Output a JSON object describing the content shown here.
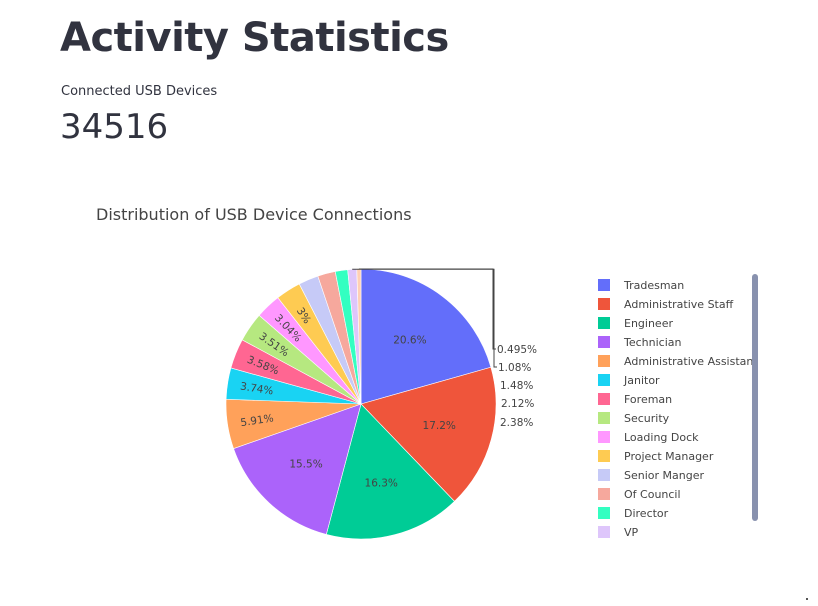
{
  "page": {
    "title": "Activity Statistics"
  },
  "metric": {
    "label": "Connected USB Devices",
    "value": "34516"
  },
  "chart_data": {
    "type": "pie",
    "title": "Distribution of USB Device Connections",
    "legend_position": "right",
    "direction": "clockwise",
    "start": "top",
    "slices": [
      {
        "name": "Tradesman",
        "percent": 20.6,
        "label": "20.6%",
        "color": "#636efa"
      },
      {
        "name": "Administrative Staff",
        "percent": 17.2,
        "label": "17.2%",
        "color": "#ef553b"
      },
      {
        "name": "Engineer",
        "percent": 16.3,
        "label": "16.3%",
        "color": "#00cc96"
      },
      {
        "name": "Technician",
        "percent": 15.5,
        "label": "15.5%",
        "color": "#ab63fa"
      },
      {
        "name": "Administrative Assistant",
        "percent": 5.91,
        "label": "5.91%",
        "color": "#ffa15a"
      },
      {
        "name": "Janitor",
        "percent": 3.74,
        "label": "3.74%",
        "color": "#19d3f3"
      },
      {
        "name": "Foreman",
        "percent": 3.58,
        "label": "3.58%",
        "color": "#ff6692"
      },
      {
        "name": "Security",
        "percent": 3.51,
        "label": "3.51%",
        "color": "#b6e880"
      },
      {
        "name": "Loading Dock",
        "percent": 3.04,
        "label": "3.04%",
        "color": "#ff97ff"
      },
      {
        "name": "Project Manager",
        "percent": 3.0,
        "label": "3%",
        "color": "#fecb52"
      },
      {
        "name": "Senior Manger",
        "percent": 2.38,
        "label": "2.38%",
        "color": "#c6caf7"
      },
      {
        "name": "Of Council",
        "percent": 2.12,
        "label": "2.12%",
        "color": "#f6a89d"
      },
      {
        "name": "Director",
        "percent": 1.48,
        "label": "1.48%",
        "color": "#33ffc1"
      },
      {
        "name": "VP",
        "percent": 1.08,
        "label": "1.08%",
        "color": "#dec6fb"
      },
      {
        "name": "",
        "percent": 0.495,
        "label": "0.495%",
        "color": "#ffd0b4"
      }
    ]
  }
}
